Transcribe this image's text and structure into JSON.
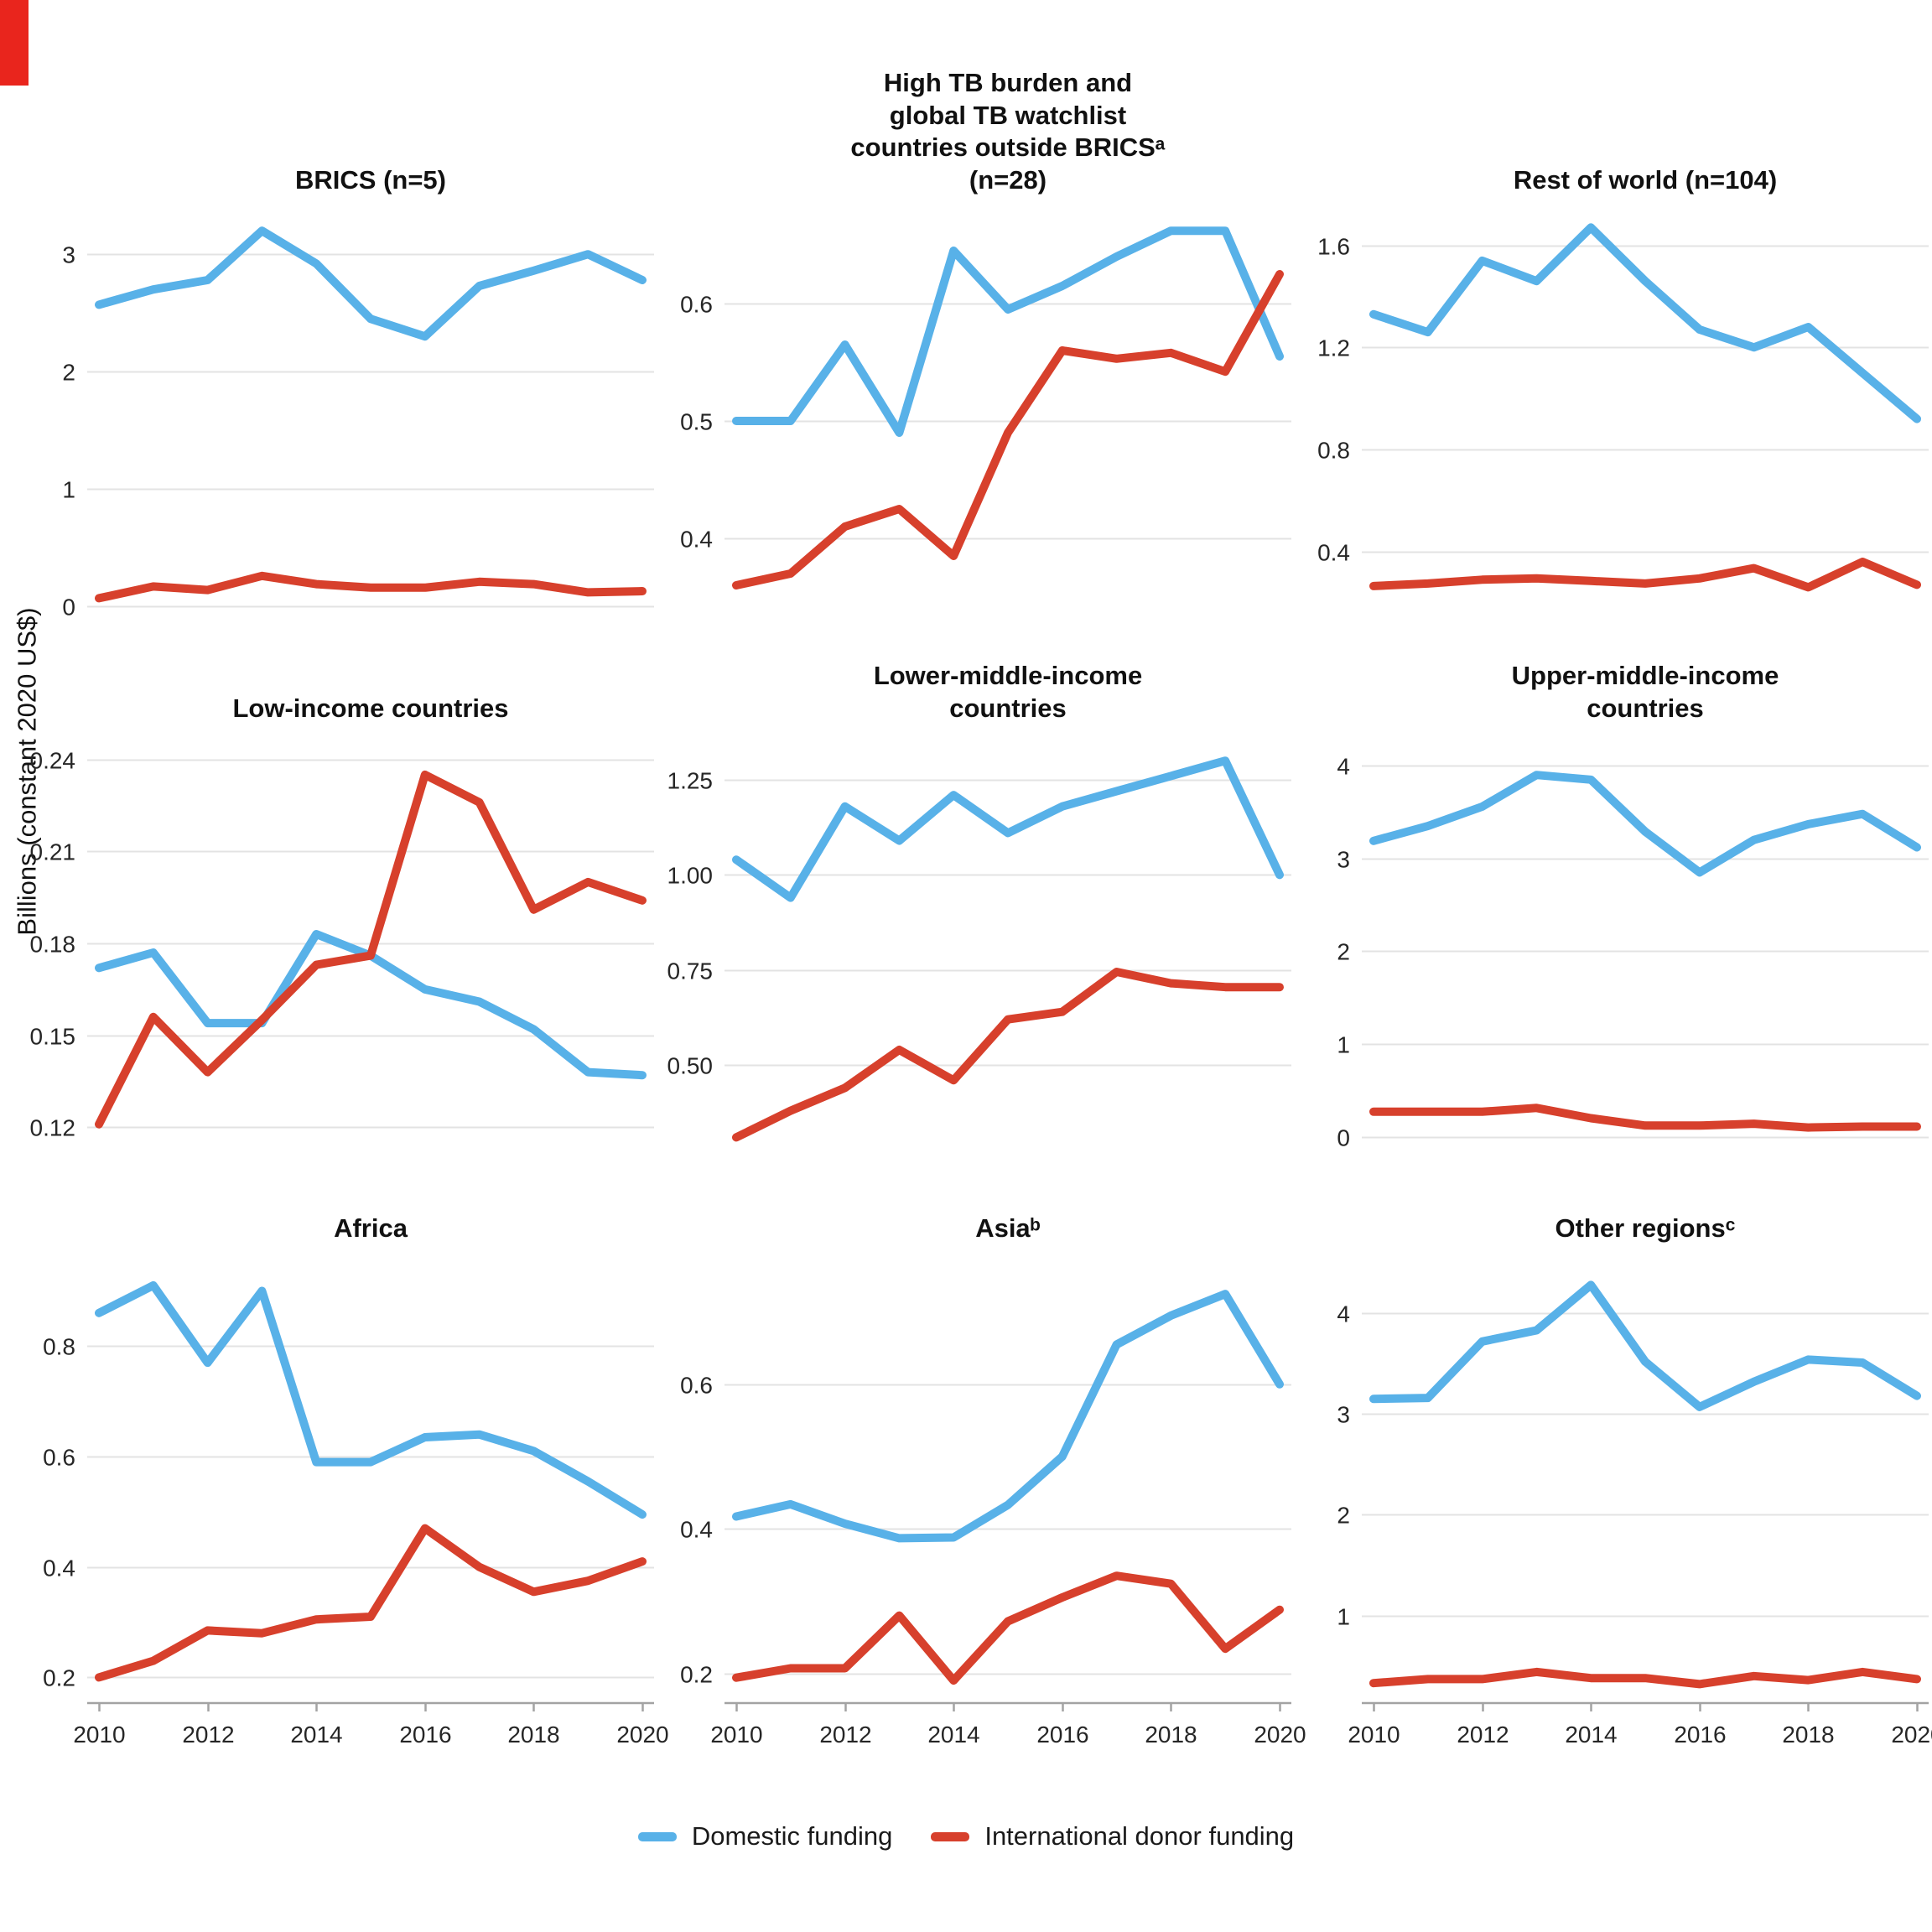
{
  "figure": {
    "ylabel": "Billions (constant 2020 US$)",
    "x_tick_years": [
      2010,
      2012,
      2014,
      2016,
      2018,
      2020
    ],
    "x_tick_labels": [
      "2010",
      "2012",
      "2014",
      "2016",
      "2018",
      "2020"
    ],
    "colors": {
      "domestic": "#58b1e8",
      "international": "#d7402c",
      "gridline": "#e3e3e3",
      "axis_line": "#a3a3a3",
      "tick_text": "#262626",
      "title_text": "#111111",
      "corner_artifact": "#e9251d"
    },
    "legend": [
      {
        "label": "Domestic funding",
        "color": "#58b1e8"
      },
      {
        "label": "International donor funding",
        "color": "#d7402c"
      }
    ]
  },
  "chart_data": [
    {
      "type": "line",
      "title_lines": [
        "BRICS (n=5)"
      ],
      "x": [
        2010,
        2011,
        2012,
        2013,
        2014,
        2015,
        2016,
        2017,
        2018,
        2019,
        2020
      ],
      "ylim": [
        -0.12,
        3.38
      ],
      "ytick_vals": [
        0,
        1,
        2,
        3
      ],
      "ytick_labels": [
        "0",
        "1",
        "2",
        "3"
      ],
      "series": [
        {
          "name": "Domestic funding",
          "color": "#58b1e8",
          "values": [
            2.57,
            2.7,
            2.78,
            3.2,
            2.92,
            2.45,
            2.3,
            2.73,
            2.86,
            3.0,
            2.78
          ]
        },
        {
          "name": "International donor funding",
          "color": "#d7402c",
          "values": [
            0.07,
            0.17,
            0.14,
            0.26,
            0.19,
            0.16,
            0.16,
            0.21,
            0.19,
            0.12,
            0.13
          ]
        }
      ]
    },
    {
      "type": "line",
      "title_lines": [
        "High TB burden and",
        "global TB watchlist",
        "countries outside BRICSᵃ",
        "(n=28)"
      ],
      "x": [
        2010,
        2011,
        2012,
        2013,
        2014,
        2015,
        2016,
        2017,
        2018,
        2019,
        2020
      ],
      "ylim": [
        0.33,
        0.68
      ],
      "ytick_vals": [
        0.4,
        0.5,
        0.6
      ],
      "ytick_labels": [
        "0.4",
        "0.5",
        "0.6"
      ],
      "series": [
        {
          "name": "Domestic funding",
          "color": "#58b1e8",
          "values": [
            0.5,
            0.5,
            0.565,
            0.49,
            0.645,
            0.595,
            0.615,
            0.64,
            0.662,
            0.662,
            0.555
          ]
        },
        {
          "name": "International donor funding",
          "color": "#d7402c",
          "values": [
            0.36,
            0.37,
            0.41,
            0.425,
            0.385,
            0.49,
            0.56,
            0.553,
            0.558,
            0.542,
            0.625
          ]
        }
      ]
    },
    {
      "type": "line",
      "title_lines": [
        "Rest of world (n=104)"
      ],
      "x": [
        2010,
        2011,
        2012,
        2013,
        2014,
        2015,
        2016,
        2017,
        2018,
        2019,
        2020
      ],
      "ylim": [
        0.13,
        1.74
      ],
      "ytick_vals": [
        0.4,
        0.8,
        1.2,
        1.6
      ],
      "ytick_labels": [
        "0.4",
        "0.8",
        "1.2",
        "1.6"
      ],
      "series": [
        {
          "name": "Domestic funding",
          "color": "#58b1e8",
          "values": [
            1.33,
            1.26,
            1.54,
            1.46,
            1.67,
            1.46,
            1.27,
            1.2,
            1.28,
            1.1,
            0.92
          ]
        },
        {
          "name": "International donor funding",
          "color": "#d7402c",
          "values": [
            0.265,
            0.275,
            0.29,
            0.295,
            0.285,
            0.275,
            0.295,
            0.335,
            0.26,
            0.36,
            0.27
          ]
        }
      ]
    },
    {
      "type": "line",
      "title_lines": [
        "Low-income countries"
      ],
      "x": [
        2010,
        2011,
        2012,
        2013,
        2014,
        2015,
        2016,
        2017,
        2018,
        2019,
        2020
      ],
      "ylim": [
        0.113,
        0.247
      ],
      "ytick_vals": [
        0.12,
        0.15,
        0.18,
        0.21,
        0.24
      ],
      "ytick_labels": [
        "0.12",
        "0.15",
        "0.18",
        "0.21",
        "0.24"
      ],
      "series": [
        {
          "name": "Domestic funding",
          "color": "#58b1e8",
          "values": [
            0.172,
            0.177,
            0.154,
            0.154,
            0.183,
            0.176,
            0.165,
            0.161,
            0.152,
            0.138,
            0.137
          ]
        },
        {
          "name": "International donor funding",
          "color": "#d7402c",
          "values": [
            0.121,
            0.156,
            0.138,
            0.155,
            0.173,
            0.176,
            0.235,
            0.226,
            0.191,
            0.2,
            0.194
          ]
        }
      ]
    },
    {
      "type": "line",
      "title_lines": [
        "Lower-middle-income",
        "countries"
      ],
      "x": [
        2010,
        2011,
        2012,
        2013,
        2014,
        2015,
        2016,
        2017,
        2018,
        2019,
        2020
      ],
      "ylim": [
        0.28,
        1.36
      ],
      "ytick_vals": [
        0.5,
        0.75,
        1.0,
        1.25
      ],
      "ytick_labels": [
        "0.50",
        "0.75",
        "1.00",
        "1.25"
      ],
      "series": [
        {
          "name": "Domestic funding",
          "color": "#58b1e8",
          "values": [
            1.04,
            0.94,
            1.18,
            1.09,
            1.21,
            1.11,
            1.18,
            1.22,
            1.26,
            1.3,
            1.0
          ]
        },
        {
          "name": "International donor funding",
          "color": "#d7402c",
          "values": [
            0.31,
            0.38,
            0.44,
            0.54,
            0.46,
            0.62,
            0.64,
            0.745,
            0.715,
            0.705,
            0.705
          ]
        }
      ]
    },
    {
      "type": "line",
      "title_lines": [
        "Upper-middle-income",
        "countries"
      ],
      "x": [
        2010,
        2011,
        2012,
        2013,
        2014,
        2015,
        2016,
        2017,
        2018,
        2019,
        2020
      ],
      "ylim": [
        -0.13,
        4.3
      ],
      "ytick_vals": [
        0,
        1,
        2,
        3,
        4
      ],
      "ytick_labels": [
        "0",
        "1",
        "2",
        "3",
        "4"
      ],
      "series": [
        {
          "name": "Domestic funding",
          "color": "#58b1e8",
          "values": [
            3.19,
            3.35,
            3.56,
            3.9,
            3.85,
            3.29,
            2.85,
            3.2,
            3.37,
            3.48,
            3.12
          ]
        },
        {
          "name": "International donor funding",
          "color": "#d7402c",
          "values": [
            0.27,
            0.27,
            0.27,
            0.31,
            0.2,
            0.12,
            0.12,
            0.14,
            0.1,
            0.11,
            0.11
          ]
        }
      ]
    },
    {
      "type": "line",
      "title_lines": [
        "Africa"
      ],
      "x": [
        2010,
        2011,
        2012,
        2013,
        2014,
        2015,
        2016,
        2017,
        2018,
        2019,
        2020
      ],
      "ylim": [
        0.155,
        0.96
      ],
      "ytick_vals": [
        0.2,
        0.4,
        0.6,
        0.8
      ],
      "ytick_labels": [
        "0.2",
        "0.4",
        "0.6",
        "0.8"
      ],
      "series": [
        {
          "name": "Domestic funding",
          "color": "#58b1e8",
          "values": [
            0.86,
            0.91,
            0.77,
            0.9,
            0.59,
            0.59,
            0.635,
            0.64,
            0.61,
            0.555,
            0.495
          ]
        },
        {
          "name": "International donor funding",
          "color": "#d7402c",
          "values": [
            0.2,
            0.23,
            0.285,
            0.28,
            0.305,
            0.31,
            0.47,
            0.4,
            0.355,
            0.375,
            0.41
          ]
        }
      ]
    },
    {
      "type": "line",
      "title_lines": [
        "Asiaᵇ"
      ],
      "x": [
        2010,
        2011,
        2012,
        2013,
        2014,
        2015,
        2016,
        2017,
        2018,
        2019,
        2020
      ],
      "ylim": [
        0.16,
        0.775
      ],
      "ytick_vals": [
        0.2,
        0.4,
        0.6
      ],
      "ytick_labels": [
        "0.2",
        "0.4",
        "0.6"
      ],
      "series": [
        {
          "name": "Domestic funding",
          "color": "#58b1e8",
          "values": [
            0.417,
            0.434,
            0.407,
            0.387,
            0.388,
            0.433,
            0.5,
            0.655,
            0.695,
            0.725,
            0.6
          ]
        },
        {
          "name": "International donor funding",
          "color": "#d7402c",
          "values": [
            0.194,
            0.207,
            0.207,
            0.28,
            0.19,
            0.272,
            0.305,
            0.335,
            0.324,
            0.234,
            0.288
          ]
        }
      ]
    },
    {
      "type": "line",
      "title_lines": [
        "Other regionsᶜ"
      ],
      "x": [
        2010,
        2011,
        2012,
        2013,
        2014,
        2015,
        2016,
        2017,
        2018,
        2019,
        2020
      ],
      "ylim": [
        0.14,
        4.55
      ],
      "ytick_vals": [
        1,
        2,
        3,
        4
      ],
      "ytick_labels": [
        "1",
        "2",
        "3",
        "4"
      ],
      "series": [
        {
          "name": "Domestic funding",
          "color": "#58b1e8",
          "values": [
            3.15,
            3.16,
            3.72,
            3.83,
            4.28,
            3.52,
            3.07,
            3.32,
            3.54,
            3.51,
            3.18
          ]
        },
        {
          "name": "International donor funding",
          "color": "#d7402c",
          "values": [
            0.33,
            0.37,
            0.37,
            0.44,
            0.38,
            0.38,
            0.32,
            0.4,
            0.36,
            0.44,
            0.37
          ]
        }
      ]
    }
  ]
}
